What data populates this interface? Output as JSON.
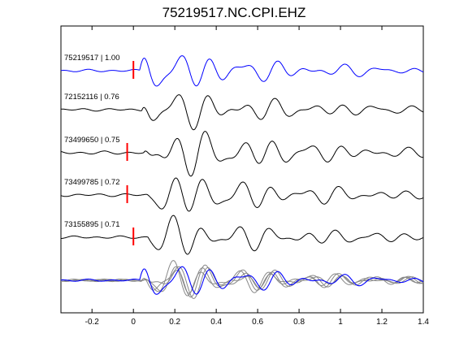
{
  "title": "75219517.NC.CPI.EHZ",
  "colors": {
    "primary": "#0000ff",
    "trace": "#000000",
    "pick": "#ff0000",
    "stack": "#888888"
  },
  "chart_data": {
    "type": "line",
    "title": "75219517.NC.CPI.EHZ",
    "xlabel": "",
    "ylabel": "",
    "xlim": [
      -0.35,
      1.4
    ],
    "xticks": [
      -0.2,
      0,
      0.2,
      0.4,
      0.6,
      0.8,
      1,
      1.2,
      1.4
    ],
    "xtick_labels": [
      "-0.2",
      "0",
      "0.2",
      "0.4",
      "0.6",
      "0.8",
      "1",
      "1.2",
      "1.4"
    ],
    "grid": false,
    "series": [
      {
        "name": "75219517 | 1.00",
        "color": "#0000ff",
        "pick": 0.0
      },
      {
        "name": "72152116 | 0.76",
        "color": "#000000",
        "pick": null
      },
      {
        "name": "73499650 | 0.75",
        "color": "#000000",
        "pick": -0.03
      },
      {
        "name": "73499785 | 0.72",
        "color": "#000000",
        "pick": -0.03
      },
      {
        "name": "73155895 | 0.71",
        "color": "#000000",
        "pick": 0.0
      }
    ]
  }
}
